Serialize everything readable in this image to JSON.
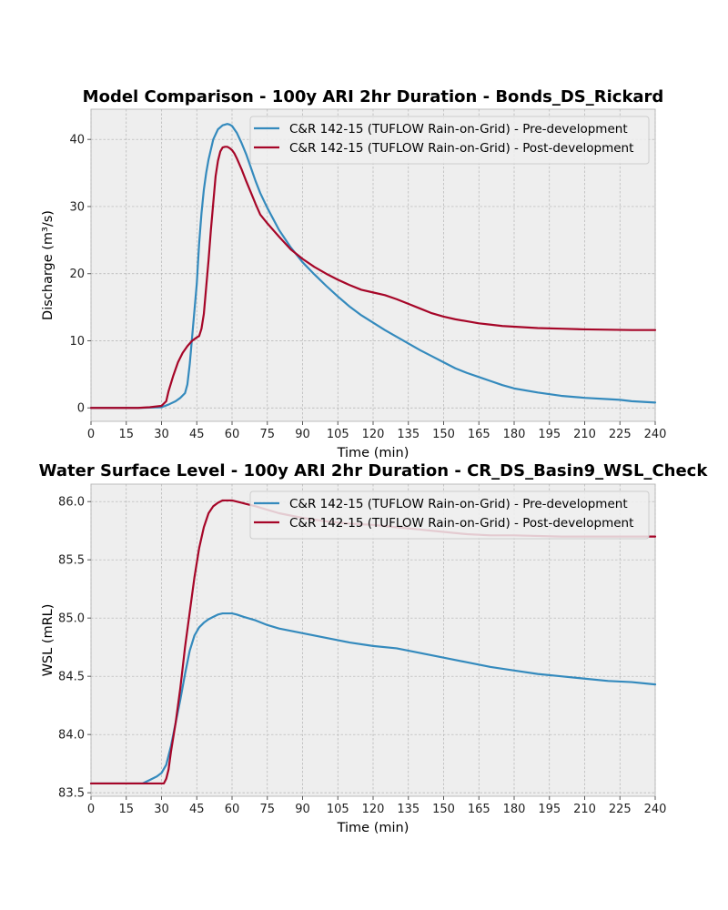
{
  "colors": {
    "pre": "#348abd",
    "post": "#a60628",
    "axes_bg": "#eeeeee",
    "grid": "#b2b2b2"
  },
  "chart_data": [
    {
      "type": "line",
      "title": "Model Comparison - 100y ARI 2hr Duration - Bonds_DS_Rickard",
      "xlabel": "Time (min)",
      "ylabel": "Discharge (m³/s)",
      "xlim": [
        0,
        240
      ],
      "ylim": [
        -2,
        44.5
      ],
      "xticks": [
        0,
        15,
        30,
        45,
        60,
        75,
        90,
        105,
        120,
        135,
        150,
        165,
        180,
        195,
        210,
        225,
        240
      ],
      "yticks": [
        0,
        10,
        20,
        30,
        40
      ],
      "ytick_labels": [
        "0",
        "10",
        "20",
        "30",
        "40"
      ],
      "grid": true,
      "legend_position": "top-right",
      "series": [
        {
          "name": "C&R 142-15 (TUFLOW Rain-on-Grid) - Pre-development",
          "color": "#348abd",
          "x": [
            0,
            20,
            30,
            33,
            36,
            38,
            40,
            41,
            42,
            43,
            44,
            45,
            46,
            47,
            48,
            49,
            50,
            52,
            54,
            56,
            58,
            59,
            60,
            62,
            64,
            66,
            68,
            70,
            72,
            75,
            80,
            85,
            90,
            95,
            100,
            105,
            110,
            115,
            120,
            125,
            130,
            135,
            140,
            145,
            150,
            155,
            160,
            165,
            170,
            175,
            180,
            190,
            200,
            210,
            220,
            225,
            230,
            240
          ],
          "y": [
            0,
            0,
            0.1,
            0.5,
            1.0,
            1.5,
            2.2,
            3.5,
            6.5,
            10.5,
            14.5,
            18.5,
            24.5,
            29.0,
            32.5,
            35.0,
            37.0,
            40.0,
            41.5,
            42.1,
            42.3,
            42.2,
            42.0,
            41.0,
            39.5,
            37.8,
            35.8,
            33.8,
            32.0,
            29.8,
            26.5,
            23.9,
            21.7,
            19.9,
            18.2,
            16.6,
            15.1,
            13.8,
            12.7,
            11.6,
            10.6,
            9.6,
            8.6,
            7.7,
            6.8,
            5.9,
            5.2,
            4.6,
            4.0,
            3.4,
            2.9,
            2.3,
            1.8,
            1.5,
            1.3,
            1.2,
            1.0,
            0.8
          ]
        },
        {
          "name": "C&R 142-15 (TUFLOW Rain-on-Grid) - Post-development",
          "color": "#a60628",
          "x": [
            0,
            20,
            25,
            30,
            32,
            33,
            35,
            37,
            39,
            41,
            43,
            45,
            46,
            47,
            48,
            49,
            50,
            51,
            52,
            53,
            54,
            55,
            56,
            57,
            58,
            59,
            60,
            61,
            62,
            64,
            66,
            68,
            70,
            72,
            75,
            80,
            85,
            90,
            95,
            100,
            105,
            110,
            115,
            120,
            125,
            130,
            135,
            140,
            145,
            150,
            155,
            160,
            165,
            170,
            175,
            180,
            190,
            200,
            210,
            220,
            230,
            240
          ],
          "y": [
            0,
            0,
            0.1,
            0.3,
            1.0,
            2.5,
            4.8,
            6.8,
            8.2,
            9.2,
            10.0,
            10.5,
            10.7,
            11.8,
            14.0,
            18.0,
            22.0,
            26.5,
            30.5,
            34.5,
            36.8,
            38.2,
            38.8,
            38.9,
            38.9,
            38.7,
            38.4,
            37.9,
            37.2,
            35.6,
            33.8,
            32.1,
            30.4,
            28.8,
            27.5,
            25.5,
            23.6,
            22.2,
            21.0,
            20.0,
            19.1,
            18.3,
            17.6,
            17.2,
            16.8,
            16.2,
            15.5,
            14.8,
            14.1,
            13.6,
            13.2,
            12.9,
            12.6,
            12.4,
            12.2,
            12.1,
            11.9,
            11.8,
            11.7,
            11.65,
            11.6,
            11.6
          ]
        }
      ]
    },
    {
      "type": "line",
      "title": "Water Surface Level - 100y ARI 2hr Duration - CR_DS_Basin9_WSL_Check",
      "xlabel": "Time (min)",
      "ylabel": "WSL (mRL)",
      "xlim": [
        0,
        240
      ],
      "ylim": [
        83.47,
        86.15
      ],
      "xticks": [
        0,
        15,
        30,
        45,
        60,
        75,
        90,
        105,
        120,
        135,
        150,
        165,
        180,
        195,
        210,
        225,
        240
      ],
      "yticks": [
        83.5,
        84.0,
        84.5,
        85.0,
        85.5,
        86.0
      ],
      "ytick_labels": [
        "83.5",
        "84.0",
        "84.5",
        "85.0",
        "85.5",
        "86.0"
      ],
      "grid": true,
      "legend_position": "top-right",
      "series": [
        {
          "name": "C&R 142-15 (TUFLOW Rain-on-Grid) - Pre-development",
          "color": "#348abd",
          "x": [
            0,
            22,
            25,
            28,
            30,
            32,
            34,
            36,
            38,
            40,
            42,
            44,
            46,
            48,
            50,
            52,
            54,
            56,
            58,
            60,
            62,
            65,
            70,
            75,
            80,
            90,
            100,
            110,
            120,
            130,
            140,
            150,
            160,
            170,
            180,
            190,
            200,
            210,
            220,
            230,
            240
          ],
          "y": [
            83.58,
            83.58,
            83.61,
            83.64,
            83.67,
            83.74,
            83.9,
            84.1,
            84.3,
            84.52,
            84.72,
            84.85,
            84.92,
            84.96,
            84.99,
            85.01,
            85.03,
            85.04,
            85.04,
            85.04,
            85.03,
            85.01,
            84.98,
            84.94,
            84.91,
            84.87,
            84.83,
            84.79,
            84.76,
            84.74,
            84.7,
            84.66,
            84.62,
            84.58,
            84.55,
            84.52,
            84.5,
            84.48,
            84.46,
            84.45,
            84.43
          ]
        },
        {
          "name": "C&R 142-15 (TUFLOW Rain-on-Grid) - Post-development",
          "color": "#a60628",
          "x": [
            0,
            31,
            32,
            33,
            34,
            36,
            38,
            40,
            42,
            44,
            46,
            48,
            50,
            52,
            54,
            56,
            58,
            60,
            62,
            64,
            66,
            70,
            75,
            80,
            90,
            100,
            110,
            120,
            130,
            140,
            150,
            160,
            170,
            180,
            200,
            220,
            240
          ],
          "y": [
            83.58,
            83.58,
            83.62,
            83.7,
            83.85,
            84.1,
            84.4,
            84.75,
            85.05,
            85.35,
            85.6,
            85.78,
            85.9,
            85.96,
            85.99,
            86.01,
            86.01,
            86.01,
            86.0,
            85.99,
            85.98,
            85.96,
            85.93,
            85.9,
            85.86,
            85.83,
            85.81,
            85.8,
            85.78,
            85.76,
            85.74,
            85.72,
            85.71,
            85.71,
            85.7,
            85.7,
            85.7
          ]
        }
      ]
    }
  ]
}
